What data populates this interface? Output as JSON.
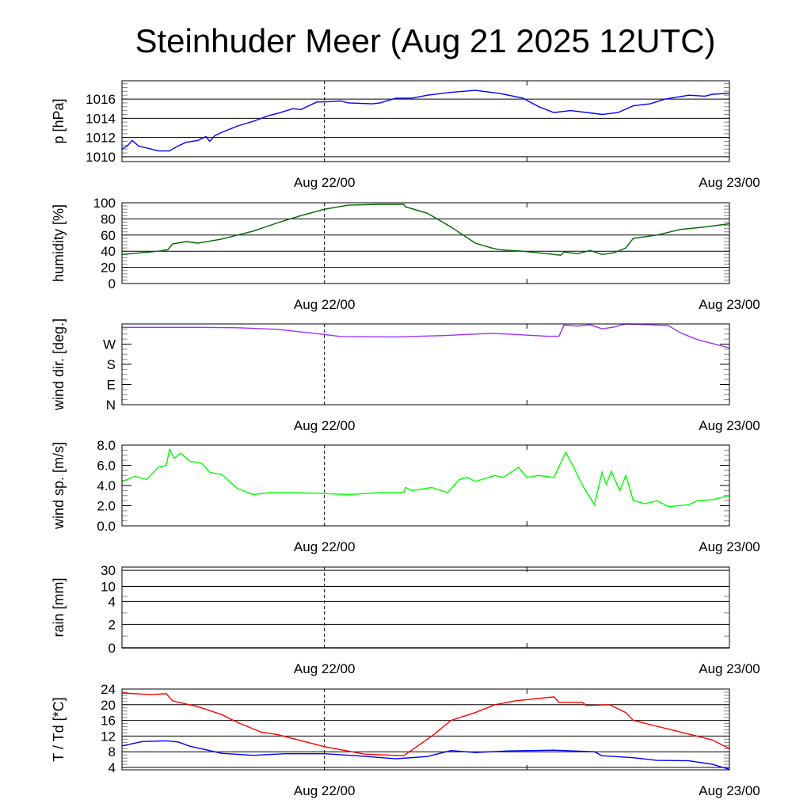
{
  "chart_data": [
    {
      "type": "line",
      "title": "Steinhuder Meer (Aug 21 2025 12UTC)",
      "xlabel": "",
      "x_units": "hours since Aug 21 12UTC",
      "xlim": [
        0,
        36
      ],
      "xticks": [
        {
          "h": 12,
          "label": "Aug 22/00",
          "dashed": true
        },
        {
          "h": 24,
          "label": "",
          "dashed": false
        },
        {
          "h": 36,
          "label": "Aug 23/00",
          "dashed": false
        }
      ]
    },
    {
      "ylabel": "p [hPa]",
      "ylim": [
        1009.5,
        1017.9
      ],
      "grid": true,
      "yticks": [
        {
          "v": 1010,
          "label": "1010"
        },
        {
          "v": 1012,
          "label": "1012"
        },
        {
          "v": 1014,
          "label": "1014"
        },
        {
          "v": 1016,
          "label": "1016"
        }
      ],
      "series": [
        {
          "name": "pressure",
          "color": "#0000ff",
          "points": [
            [
              0,
              1010.8
            ],
            [
              0.3,
              1011.1
            ],
            [
              0.6,
              1011.7
            ],
            [
              1,
              1011.1
            ],
            [
              1.5,
              1010.9
            ],
            [
              2.16,
              1010.6
            ],
            [
              2.8,
              1010.6
            ],
            [
              3.3,
              1011.1
            ],
            [
              3.8,
              1011.5
            ],
            [
              4.5,
              1011.7
            ],
            [
              4.98,
              1012.1
            ],
            [
              5.2,
              1011.6
            ],
            [
              5.5,
              1012.2
            ],
            [
              6,
              1012.6
            ],
            [
              6.85,
              1013.2
            ],
            [
              7.8,
              1013.7
            ],
            [
              8.73,
              1014.3
            ],
            [
              9.2,
              1014.5
            ],
            [
              10.14,
              1015
            ],
            [
              10.6,
              1014.9
            ],
            [
              11.55,
              1015.7
            ],
            [
              12,
              1015.7
            ],
            [
              12.96,
              1015.8
            ],
            [
              13.4,
              1015.6
            ],
            [
              14.84,
              1015.5
            ],
            [
              15.3,
              1015.6
            ],
            [
              16.24,
              1016.1
            ],
            [
              17.2,
              1016.1
            ],
            [
              18.1,
              1016.4
            ],
            [
              19.5,
              1016.7
            ],
            [
              20.94,
              1016.9
            ],
            [
              22.35,
              1016.6
            ],
            [
              23.76,
              1016.1
            ],
            [
              24.7,
              1015.2
            ],
            [
              25.6,
              1014.6
            ],
            [
              26.6,
              1014.8
            ],
            [
              28.45,
              1014.4
            ],
            [
              29.4,
              1014.6
            ],
            [
              30.3,
              1015.3
            ],
            [
              31.3,
              1015.5
            ],
            [
              32.2,
              1016
            ],
            [
              33.6,
              1016.4
            ],
            [
              34.55,
              1016.3
            ],
            [
              35,
              1016.5
            ],
            [
              36,
              1016.6
            ]
          ]
        }
      ]
    },
    {
      "ylabel": "humidity [%]",
      "ylim": [
        0,
        100
      ],
      "grid": true,
      "yticks": [
        {
          "v": 0,
          "label": "0"
        },
        {
          "v": 20,
          "label": "20"
        },
        {
          "v": 40,
          "label": "40"
        },
        {
          "v": 60,
          "label": "60"
        },
        {
          "v": 80,
          "label": "80"
        },
        {
          "v": 100,
          "label": "100"
        }
      ],
      "series": [
        {
          "name": "humidity",
          "color": "#006400",
          "points": [
            [
              0,
              36
            ],
            [
              2.16,
              40
            ],
            [
              2.72,
              42
            ],
            [
              3,
              49
            ],
            [
              3.8,
              52
            ],
            [
              4.5,
              50
            ],
            [
              5.9,
              55
            ],
            [
              7.8,
              65
            ],
            [
              9.2,
              75
            ],
            [
              10.6,
              84
            ],
            [
              12,
              92
            ],
            [
              13.4,
              97
            ],
            [
              15.3,
              98
            ],
            [
              16.7,
              98
            ],
            [
              16.8,
              95
            ],
            [
              18.1,
              87
            ],
            [
              19.5,
              70
            ],
            [
              20.94,
              50
            ],
            [
              21.9,
              44
            ],
            [
              22.35,
              42
            ],
            [
              23.76,
              40
            ],
            [
              25.6,
              36
            ],
            [
              26,
              35
            ],
            [
              26.2,
              39
            ],
            [
              27,
              37
            ],
            [
              27.75,
              41
            ],
            [
              28.45,
              36
            ],
            [
              29.15,
              38
            ],
            [
              29.86,
              44
            ],
            [
              30.3,
              56
            ],
            [
              31.7,
              60
            ],
            [
              33.1,
              67
            ],
            [
              34.55,
              70
            ],
            [
              36,
              74
            ]
          ]
        }
      ]
    },
    {
      "ylabel": "wind dir. [deg.]",
      "ylim": [
        0,
        360
      ],
      "grid": false,
      "yticks": [
        {
          "v": 0,
          "label": "N"
        },
        {
          "v": 90,
          "label": "E"
        },
        {
          "v": 180,
          "label": "S"
        },
        {
          "v": 270,
          "label": "W"
        }
      ],
      "series": [
        {
          "name": "wind direction",
          "color": "#9b30ff",
          "points": [
            [
              0,
              345
            ],
            [
              2.16,
              345
            ],
            [
              4.5,
              345
            ],
            [
              6.85,
              343
            ],
            [
              9.2,
              336
            ],
            [
              12,
              313
            ],
            [
              12.96,
              304
            ],
            [
              16.24,
              302
            ],
            [
              19.06,
              308
            ],
            [
              20.94,
              315
            ],
            [
              21.9,
              318
            ],
            [
              23.3,
              313
            ],
            [
              25.2,
              305
            ],
            [
              25.9,
              305
            ],
            [
              26.2,
              355
            ],
            [
              27,
              350
            ],
            [
              27.75,
              356
            ],
            [
              28.45,
              338
            ],
            [
              29.15,
              346
            ],
            [
              29.86,
              360
            ],
            [
              31.3,
              356
            ],
            [
              32.4,
              352
            ],
            [
              33.1,
              320
            ],
            [
              34.1,
              290
            ],
            [
              36,
              253
            ]
          ]
        }
      ]
    },
    {
      "ylabel": "wind sp. [m/s]",
      "ylim": [
        0,
        8
      ],
      "grid": false,
      "yticks": [
        {
          "v": 0,
          "label": "0.0"
        },
        {
          "v": 2,
          "label": "2.0"
        },
        {
          "v": 4,
          "label": "4.0"
        },
        {
          "v": 6,
          "label": "6.0"
        },
        {
          "v": 8,
          "label": "8.0"
        }
      ],
      "series": [
        {
          "name": "wind speed",
          "color": "#00ff00",
          "points": [
            [
              0,
              4.4
            ],
            [
              0.75,
              4.9
            ],
            [
              1.46,
              4.6
            ],
            [
              2.16,
              5.8
            ],
            [
              2.63,
              6.0
            ],
            [
              2.82,
              7.6
            ],
            [
              3.1,
              6.7
            ],
            [
              3.47,
              7.2
            ],
            [
              4.04,
              6.4
            ],
            [
              4.74,
              6.2
            ],
            [
              5.2,
              5.3
            ],
            [
              5.9,
              5.1
            ],
            [
              6.85,
              3.7
            ],
            [
              7.8,
              3.1
            ],
            [
              8.73,
              3.3
            ],
            [
              10.14,
              3.3
            ],
            [
              12,
              3.2
            ],
            [
              13.4,
              3.1
            ],
            [
              15.3,
              3.3
            ],
            [
              16.7,
              3.3
            ],
            [
              16.8,
              3.8
            ],
            [
              17.2,
              3.5
            ],
            [
              18.36,
              3.8
            ],
            [
              19.3,
              3.3
            ],
            [
              20,
              4.6
            ],
            [
              20.47,
              4.8
            ],
            [
              20.94,
              4.4
            ],
            [
              22.1,
              5.0
            ],
            [
              22.6,
              4.8
            ],
            [
              23.05,
              5.3
            ],
            [
              23.5,
              5.8
            ],
            [
              24,
              4.8
            ],
            [
              24.7,
              5.0
            ],
            [
              25.6,
              4.8
            ],
            [
              26.3,
              7.3
            ],
            [
              26.8,
              5.7
            ],
            [
              27.3,
              4.0
            ],
            [
              28,
              2.1
            ],
            [
              28.45,
              5.3
            ],
            [
              28.7,
              4.1
            ],
            [
              29,
              5.4
            ],
            [
              29.5,
              3.5
            ],
            [
              29.86,
              5.0
            ],
            [
              30.3,
              2.5
            ],
            [
              31,
              2.2
            ],
            [
              31.7,
              2.5
            ],
            [
              32.4,
              1.9
            ],
            [
              33.6,
              2.1
            ],
            [
              34.1,
              2.5
            ],
            [
              35,
              2.6
            ],
            [
              36,
              3.0
            ]
          ]
        }
      ]
    },
    {
      "ylabel": "rain [mm]",
      "scale": "nonlinear",
      "ylim": [
        0,
        30
      ],
      "grid": true,
      "yticks": [
        {
          "v": 0,
          "label": "0"
        },
        {
          "v": 2,
          "label": "2"
        },
        {
          "v": 4,
          "label": "4"
        },
        {
          "v": 10,
          "label": "10"
        },
        {
          "v": 30,
          "label": "30"
        }
      ],
      "series": [
        {
          "name": "rain",
          "color": "#00008b",
          "points": [
            [
              0,
              0
            ],
            [
              36,
              0
            ]
          ]
        }
      ]
    },
    {
      "ylabel": "T / Td [*C]",
      "ylim": [
        3.4,
        24
      ],
      "grid": true,
      "yticks": [
        {
          "v": 4,
          "label": "4"
        },
        {
          "v": 8,
          "label": "8"
        },
        {
          "v": 12,
          "label": "12"
        },
        {
          "v": 16,
          "label": "16"
        },
        {
          "v": 20,
          "label": "20"
        },
        {
          "v": 24,
          "label": "24"
        }
      ],
      "series": [
        {
          "name": "T",
          "color": "#ff0000",
          "points": [
            [
              0,
              23
            ],
            [
              1.7,
              22.6
            ],
            [
              2.63,
              22.8
            ],
            [
              3,
              21.0
            ],
            [
              4.5,
              19.5
            ],
            [
              5.9,
              17.5
            ],
            [
              6.85,
              15.5
            ],
            [
              8.26,
              13
            ],
            [
              9.2,
              12.4
            ],
            [
              12,
              9.3
            ],
            [
              14.37,
              7.4
            ],
            [
              16.7,
              7.0
            ],
            [
              17.2,
              8.5
            ],
            [
              18.36,
              12
            ],
            [
              19.5,
              16
            ],
            [
              20.94,
              18
            ],
            [
              22.1,
              20
            ],
            [
              23.3,
              21
            ],
            [
              25.6,
              22
            ],
            [
              25.9,
              20.6
            ],
            [
              27.3,
              20.6
            ],
            [
              27.5,
              19.8
            ],
            [
              28.9,
              20
            ],
            [
              29.86,
              18
            ],
            [
              30.3,
              16
            ],
            [
              31.7,
              14.5
            ],
            [
              33.6,
              12.5
            ],
            [
              35,
              11
            ],
            [
              36,
              8.8
            ]
          ]
        },
        {
          "name": "Td",
          "color": "#0000ff",
          "points": [
            [
              0,
              9.5
            ],
            [
              1.2,
              10.6
            ],
            [
              2.63,
              10.8
            ],
            [
              3.33,
              10.5
            ],
            [
              4.04,
              9.4
            ],
            [
              4.98,
              8.5
            ],
            [
              5.9,
              7.6
            ],
            [
              7.8,
              7.1
            ],
            [
              9.67,
              7.5
            ],
            [
              12,
              7.5
            ],
            [
              13.9,
              7.0
            ],
            [
              16.24,
              6.2
            ],
            [
              18.1,
              6.8
            ],
            [
              19.5,
              8.3
            ],
            [
              20.94,
              7.8
            ],
            [
              22.8,
              8.2
            ],
            [
              25.6,
              8.4
            ],
            [
              28,
              8.0
            ],
            [
              28.45,
              7.0
            ],
            [
              30.3,
              6.5
            ],
            [
              31.7,
              5.8
            ],
            [
              33.6,
              5.7
            ],
            [
              35,
              4.8
            ],
            [
              36,
              3.5
            ]
          ]
        }
      ]
    }
  ]
}
